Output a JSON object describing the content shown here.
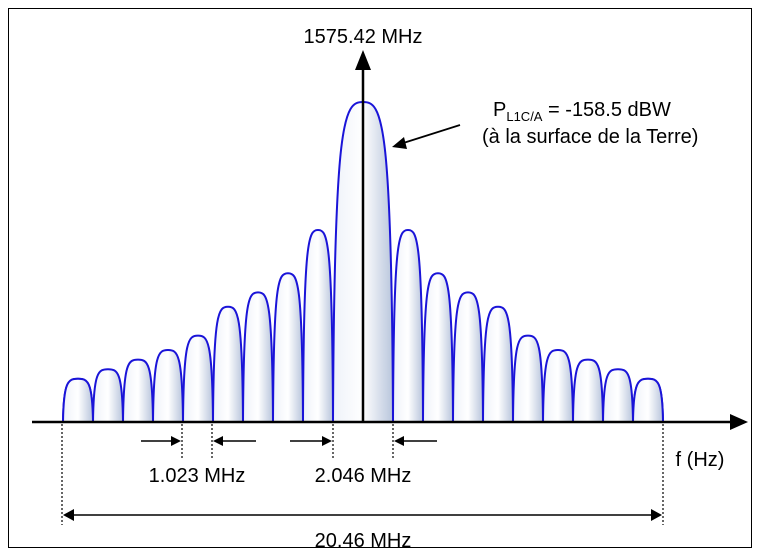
{
  "diagram": {
    "center_frequency_label": "1575.42 MHz",
    "power_symbol": "P",
    "power_subscript": "L1C/A",
    "power_value": " = -158.5 dBW",
    "power_note": "(à la surface de la Terre)",
    "frequency_axis_label": "f (Hz)",
    "lobe_width_label": "1.023 MHz",
    "main_lobe_width_label": "2.046 MHz",
    "total_bandwidth_label": "20.46 MHz"
  },
  "chart_data": {
    "type": "area",
    "description_values": {
      "main_lobe_width_mhz": 2.046,
      "side_lobe_width_mhz": 1.023,
      "total_bandwidth_mhz": 20.46,
      "side_lobes_per_side": 9,
      "relative_lobe_heights": [
        1.0,
        0.6,
        0.465,
        0.405,
        0.36,
        0.27,
        0.225,
        0.195,
        0.165,
        0.135
      ]
    },
    "colors": {
      "lobe_stroke": "#1a14d8",
      "lobe_fill_light": "#ffffff",
      "lobe_fill_dark": "#bcc8de"
    }
  }
}
